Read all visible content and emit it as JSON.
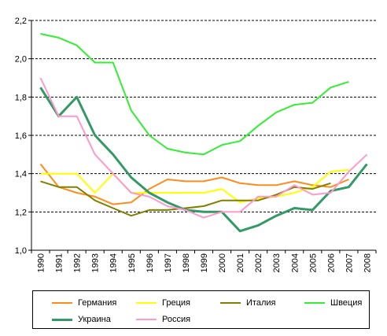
{
  "chart_data": {
    "type": "line",
    "x": [
      "1990",
      "1991",
      "1992",
      "1993",
      "1994",
      "1995",
      "1996",
      "1997",
      "1998",
      "1999",
      "2000",
      "2001",
      "2002",
      "2003",
      "2004",
      "2005",
      "2006",
      "2007",
      "2008"
    ],
    "ylim": [
      1.0,
      2.2
    ],
    "yticks": [
      "1,0",
      "1,2",
      "1,4",
      "1,6",
      "1,8",
      "2,0",
      "2,2"
    ],
    "grid": "horizontal dashed",
    "legend_position": "bottom",
    "series": [
      {
        "name": "Германия",
        "color": "#FF8C1A",
        "width": 2,
        "values": [
          1.45,
          1.33,
          1.3,
          1.28,
          1.24,
          1.25,
          1.32,
          1.37,
          1.36,
          1.36,
          1.38,
          1.35,
          1.34,
          1.34,
          1.36,
          1.34,
          1.33,
          1.37,
          null
        ]
      },
      {
        "name": "Греция",
        "color": "#FFFF00",
        "width": 2,
        "values": [
          1.4,
          1.4,
          1.4,
          1.3,
          1.4,
          1.3,
          1.3,
          1.3,
          1.3,
          1.3,
          1.32,
          1.25,
          1.27,
          1.28,
          1.3,
          1.33,
          1.41,
          1.42,
          null
        ]
      },
      {
        "name": "Италия",
        "color": "#808000",
        "width": 2,
        "values": [
          1.36,
          1.33,
          1.33,
          1.26,
          1.22,
          1.18,
          1.21,
          1.21,
          1.22,
          1.23,
          1.26,
          1.26,
          1.26,
          1.29,
          1.33,
          1.32,
          1.35,
          null,
          null
        ]
      },
      {
        "name": "Швеция",
        "color": "#33EE33",
        "width": 2,
        "values": [
          2.13,
          2.11,
          2.07,
          1.98,
          1.98,
          1.73,
          1.6,
          1.53,
          1.51,
          1.5,
          1.55,
          1.57,
          1.65,
          1.72,
          1.76,
          1.77,
          1.85,
          1.88,
          null
        ]
      },
      {
        "name": "Украина",
        "color": "#339966",
        "width": 3,
        "values": [
          1.85,
          1.7,
          1.8,
          1.6,
          1.5,
          1.38,
          1.3,
          1.25,
          1.21,
          1.2,
          1.2,
          1.1,
          1.13,
          1.18,
          1.22,
          1.21,
          1.31,
          1.33,
          1.45
        ]
      },
      {
        "name": "Россия",
        "color": "#FF99CC",
        "width": 2,
        "values": [
          1.9,
          1.7,
          1.7,
          1.5,
          1.4,
          1.3,
          1.28,
          1.23,
          1.21,
          1.17,
          1.2,
          1.2,
          1.28,
          1.28,
          1.34,
          1.29,
          1.3,
          1.41,
          1.5
        ]
      }
    ]
  }
}
